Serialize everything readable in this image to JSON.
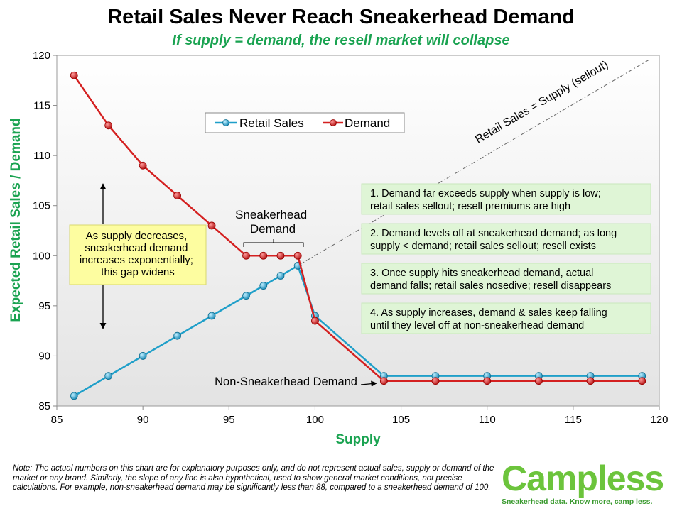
{
  "chart_data": {
    "type": "line",
    "title": "Retail Sales Never Reach Sneakerhead Demand",
    "subtitle": "If supply = demand, the resell market will collapse",
    "xlabel": "Supply",
    "ylabel": "Expected Retail Sales / Demand",
    "xlim": [
      85,
      120
    ],
    "ylim": [
      85,
      120
    ],
    "x_ticks": [
      "85",
      "90",
      "95",
      "100",
      "105",
      "110",
      "115",
      "120"
    ],
    "y_ticks": [
      "85",
      "90",
      "95",
      "100",
      "105",
      "110",
      "115",
      "120"
    ],
    "legend_position": "top-left",
    "series": [
      {
        "name": "Retail Sales",
        "color": "#1f9fc9",
        "x": [
          86,
          88,
          90,
          92,
          94,
          96,
          97,
          98,
          99,
          100,
          104,
          107,
          110,
          113,
          116,
          119
        ],
        "y": [
          86,
          88,
          90,
          92,
          94,
          96,
          97,
          98,
          99,
          94,
          88,
          88,
          88,
          88,
          88,
          88
        ]
      },
      {
        "name": "Demand",
        "color": "#d42020",
        "x": [
          86,
          88,
          90,
          92,
          94,
          96,
          97,
          98,
          99,
          100,
          104,
          107,
          110,
          113,
          116,
          119
        ],
        "y": [
          118,
          113,
          109,
          106,
          103,
          100,
          100,
          100,
          100,
          93.5,
          87.5,
          87.5,
          87.5,
          87.5,
          87.5,
          87.5
        ]
      }
    ],
    "reference_line": {
      "label": "Retail Sales = Supply (sellout)",
      "from": [
        99,
        99
      ],
      "to": [
        119,
        119
      ]
    },
    "annotations": {
      "gap_box": [
        "As supply decreases,",
        "sneakerhead demand",
        "increases exponentially;",
        "this gap widens"
      ],
      "sneakerhead_label": [
        "Sneakerhead",
        "Demand"
      ],
      "non_sneakerhead_label": "Non-Sneakerhead Demand",
      "notes": [
        [
          "1. Demand far exceeds supply when supply is low;",
          "retail sales sellout; resell premiums are high"
        ],
        [
          "2. Demand levels off at sneakerhead demand; as long",
          "supply < demand; retail sales sellout; resell exists"
        ],
        [
          "3. Once supply hits sneakerhead demand, actual",
          "demand falls; retail sales nosedive; resell disappears"
        ],
        [
          "4. As supply increases, demand & sales keep falling",
          "until they level off at non-sneakerhead demand"
        ]
      ]
    },
    "colors": {
      "plot_bg_top": "#ffffff",
      "plot_bg_bottom": "#e3e3e3",
      "note_box": "#dff5d6",
      "gap_box": "#fdfda0",
      "axis_label": "#1aa351"
    }
  },
  "footnote": "Note:  The actual numbers on this chart are for explanatory purposes only, and do not represent actual sales, supply or demand of the market or any brand.  Similarly, the slope of any line is also hypothetical, used to show general market conditions, not precise calculations.  For example, non-sneakerhead demand may be significantly less than 88, compared to a sneakerhead demand of 100.",
  "brand": {
    "name": "Campless",
    "tagline": "Sneakerhead data.  Know more, camp less."
  }
}
